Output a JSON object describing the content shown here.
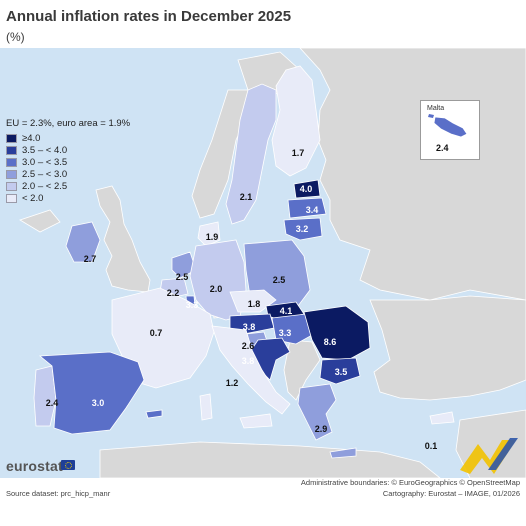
{
  "title": "Annual inflation rates in December 2025",
  "subtitle": "(%)",
  "legend": {
    "eu_note": "EU = 2.3%, euro area = 1.9%",
    "classes": [
      {
        "label": "≥4.0",
        "color": "#0b1a62"
      },
      {
        "label": "3.5 – < 4.0",
        "color": "#2a3e9b"
      },
      {
        "label": "3.0 – < 3.5",
        "color": "#5a6fc8"
      },
      {
        "label": "2.5 – < 3.0",
        "color": "#8f9edc"
      },
      {
        "label": "2.0 – < 2.5",
        "color": "#c3cbee"
      },
      {
        "label": "< 2.0",
        "color": "#e8ebf8"
      }
    ]
  },
  "colors": {
    "sea": "#cfe3f4",
    "non_eu": "#d8d8d8",
    "border": "#ffffff"
  },
  "countries": [
    {
      "name": "Finland",
      "value": "1.7",
      "cls": 5
    },
    {
      "name": "Sweden",
      "value": "2.1",
      "cls": 4
    },
    {
      "name": "Estonia",
      "value": "4.0",
      "cls": 0
    },
    {
      "name": "Latvia",
      "value": "3.4",
      "cls": 2
    },
    {
      "name": "Lithuania",
      "value": "3.2",
      "cls": 2
    },
    {
      "name": "Denmark",
      "value": "1.9",
      "cls": 5
    },
    {
      "name": "Ireland",
      "value": "2.7",
      "cls": 3
    },
    {
      "name": "Netherlands",
      "value": "2.5",
      "cls": 3
    },
    {
      "name": "Belgium",
      "value": "2.2",
      "cls": 4
    },
    {
      "name": "Luxembourg",
      "value": "3.3",
      "cls": 2
    },
    {
      "name": "Germany",
      "value": "2.0",
      "cls": 4
    },
    {
      "name": "Poland",
      "value": "2.5",
      "cls": 3
    },
    {
      "name": "Czechia",
      "value": "1.8",
      "cls": 5
    },
    {
      "name": "Slovakia",
      "value": "4.1",
      "cls": 0
    },
    {
      "name": "France",
      "value": "0.7",
      "cls": 5
    },
    {
      "name": "Austria",
      "value": "3.8",
      "cls": 1
    },
    {
      "name": "Hungary",
      "value": "3.3",
      "cls": 2
    },
    {
      "name": "Romania",
      "value": "8.6",
      "cls": 0
    },
    {
      "name": "Slovenia",
      "value": "2.6",
      "cls": 3
    },
    {
      "name": "Croatia",
      "value": "3.8",
      "cls": 1
    },
    {
      "name": "Bulgaria",
      "value": "3.5",
      "cls": 1
    },
    {
      "name": "Italy",
      "value": "1.2",
      "cls": 5
    },
    {
      "name": "Portugal",
      "value": "2.4",
      "cls": 4
    },
    {
      "name": "Spain",
      "value": "3.0",
      "cls": 2
    },
    {
      "name": "Greece",
      "value": "2.9",
      "cls": 3
    },
    {
      "name": "Cyprus",
      "value": "0.1",
      "cls": 5
    },
    {
      "name": "Malta",
      "value": "2.4",
      "cls": 4
    }
  ],
  "malta_inset_label": "Malta",
  "footer": {
    "logo": "eurostat",
    "source": "Source dataset: prc_hicp_manr",
    "admin": "Administrative boundaries: © EuroGeographics © OpenStreetMap",
    "cartography": "Cartography: Eurostat – IMAGE, 01/2026"
  }
}
